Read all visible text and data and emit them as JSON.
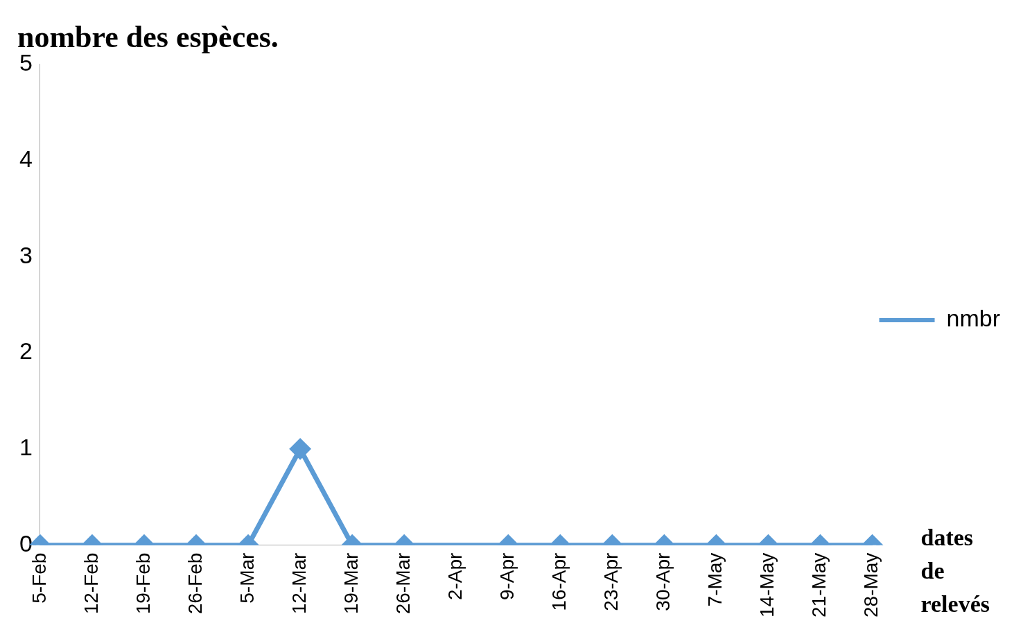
{
  "chart_data": {
    "type": "line",
    "title": "nombre des espèces.",
    "xlabel": "dates de relevés",
    "categories": [
      "5-Feb",
      "12-Feb",
      "19-Feb",
      "26-Feb",
      "5-Mar",
      "12-Mar",
      "19-Mar",
      "26-Mar",
      "2-Apr",
      "9-Apr",
      "16-Apr",
      "23-Apr",
      "30-Apr",
      "7-May",
      "14-May",
      "21-May",
      "28-May"
    ],
    "series": [
      {
        "name": "nmbr",
        "color": "#5b9bd5",
        "values": [
          0,
          0,
          0,
          0,
          0,
          1,
          0,
          0,
          null,
          0,
          0,
          0,
          0,
          0,
          0,
          0,
          0
        ]
      }
    ],
    "ylim": [
      0,
      5
    ],
    "yticks": [
      0,
      1,
      2,
      3,
      4,
      5
    ],
    "grid": false,
    "legend": "right",
    "marker": "diamond",
    "line_style": "solid"
  }
}
